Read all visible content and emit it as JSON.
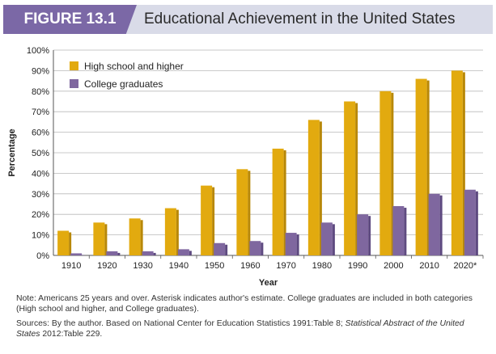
{
  "header": {
    "figure_label": "FIGURE 13.1",
    "title": "Educational Achievement in the United States"
  },
  "colors": {
    "high_school": "#e2aa0f",
    "college": "#7f679f",
    "header_bg": "#d9dbe8",
    "figure_label_bg": "#7b68a6"
  },
  "chart_data": {
    "type": "bar",
    "categories": [
      "1910",
      "1920",
      "1930",
      "1940",
      "1950",
      "1960",
      "1970",
      "1980",
      "1990",
      "2000",
      "2010",
      "2020*"
    ],
    "series": [
      {
        "name": "High school and higher",
        "values": [
          12,
          16,
          18,
          23,
          34,
          42,
          52,
          66,
          75,
          80,
          86,
          90
        ]
      },
      {
        "name": "College graduates",
        "values": [
          1,
          2,
          2,
          3,
          6,
          7,
          11,
          16,
          20,
          24,
          30,
          32
        ]
      }
    ],
    "xlabel": "Year",
    "ylabel": "Percentage",
    "ylim": [
      0,
      100
    ],
    "yticks": [
      "0%",
      "10%",
      "20%",
      "30%",
      "40%",
      "50%",
      "60%",
      "70%",
      "80%",
      "90%",
      "100%"
    ],
    "grid": true,
    "legend_position": "top-left"
  },
  "notes": {
    "note": "Note: Americans 25 years and over. Asterisk indicates author's estimate. College graduates are included in both categories (High school and higher, and College graduates).",
    "sources_prefix": "Sources: By the author. Based on National Center for Education Statistics 1991:Table 8; ",
    "sources_italic": "Statistical Abstract of the United States",
    "sources_suffix": " 2012:Table 229."
  }
}
